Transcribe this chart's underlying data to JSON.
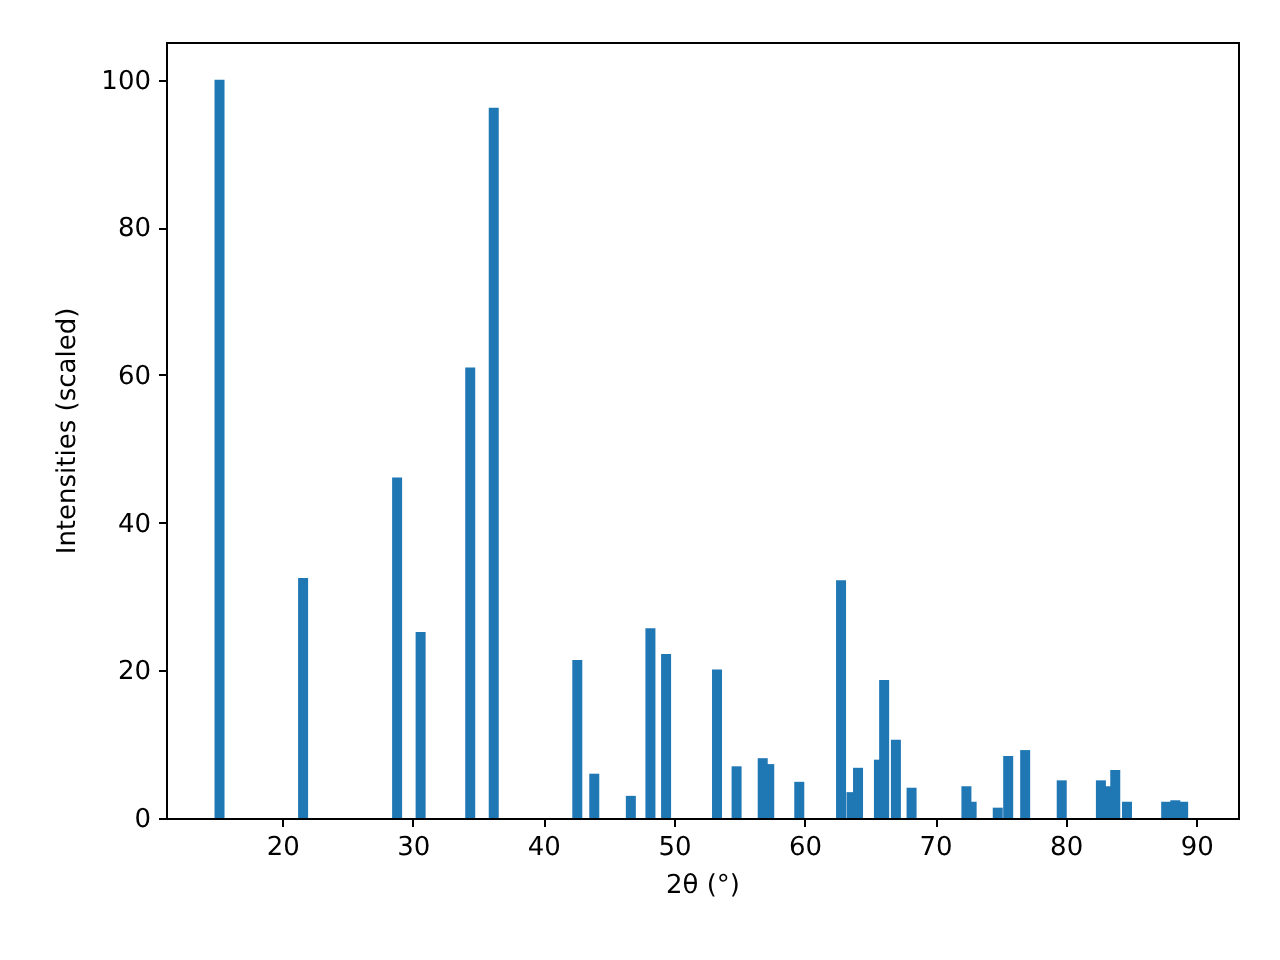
{
  "chart_data": {
    "type": "bar",
    "xlabel": "2θ (°)",
    "ylabel": "Intensities (scaled)",
    "x": [
      15.2,
      21.6,
      28.8,
      30.6,
      34.4,
      36.2,
      42.6,
      43.9,
      46.7,
      48.2,
      49.4,
      53.3,
      54.8,
      56.8,
      57.3,
      59.6,
      62.8,
      63.6,
      64.1,
      65.7,
      66.1,
      67.0,
      68.2,
      72.4,
      72.8,
      74.8,
      75.6,
      76.9,
      79.7,
      82.7,
      83.2,
      83.8,
      84.7,
      87.7,
      88.4,
      89.0
    ],
    "series": [
      {
        "color": "#1f77b4",
        "values": [
          100,
          32.5,
          46.1,
          25.2,
          61,
          96.2,
          21.4,
          6.0,
          3.0,
          25.7,
          22.2,
          20.1,
          7.0,
          8.1,
          7.3,
          4.9,
          32.2,
          3.5,
          6.8,
          7.9,
          18.7,
          10.6,
          4.1,
          4.3,
          2.2,
          1.4,
          8.4,
          9.2,
          5.1,
          5.1,
          4.3,
          6.5,
          2.2,
          2.2,
          2.4,
          2.2
        ]
      }
    ],
    "xlim": [
      11.1,
      93.2
    ],
    "ylim": [
      0,
      105.1
    ],
    "xticks": [
      20,
      30,
      40,
      50,
      60,
      70,
      80,
      90
    ],
    "yticks": [
      0,
      20,
      40,
      60,
      80,
      100
    ],
    "grid": false
  }
}
